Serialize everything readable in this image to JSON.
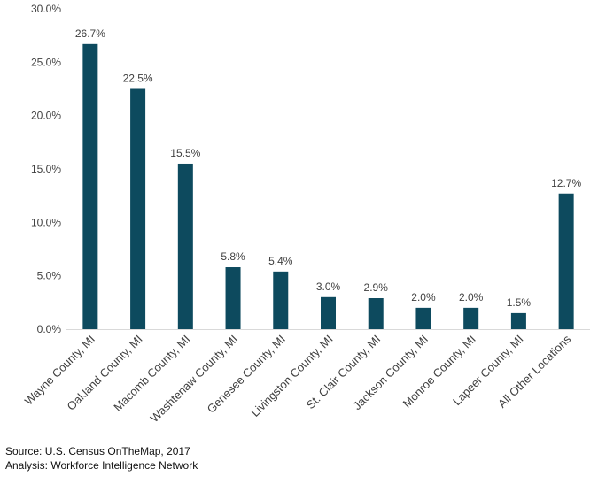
{
  "chart_data": {
    "type": "bar",
    "title": "",
    "xlabel": "",
    "ylabel": "",
    "ylim": [
      0,
      30
    ],
    "y_ticks": [
      "0.0%",
      "5.0%",
      "10.0%",
      "15.0%",
      "20.0%",
      "25.0%",
      "30.0%"
    ],
    "y_tick_values": [
      0,
      5,
      10,
      15,
      20,
      25,
      30
    ],
    "grid": false,
    "bar_color": "#0d4a5e",
    "categories": [
      "Wayne County, MI",
      "Oakland County, MI",
      "Macomb County, MI",
      "Washtenaw County, MI",
      "Genesee County, MI",
      "Livingston County, MI",
      "St. Clair County, MI",
      "Jackson County, MI",
      "Monroe County, MI",
      "Lapeer County, MI",
      "All Other Locations"
    ],
    "values": [
      26.7,
      22.5,
      15.5,
      5.8,
      5.4,
      3.0,
      2.9,
      2.0,
      2.0,
      1.5,
      12.7
    ],
    "data_labels": [
      "26.7%",
      "22.5%",
      "15.5%",
      "5.8%",
      "5.4%",
      "3.0%",
      "2.9%",
      "2.0%",
      "2.0%",
      "1.5%",
      "12.7%"
    ]
  },
  "footer": {
    "source": "Source: U.S. Census OnTheMap, 2017",
    "analysis": "Analysis: Workforce Intelligence Network"
  }
}
